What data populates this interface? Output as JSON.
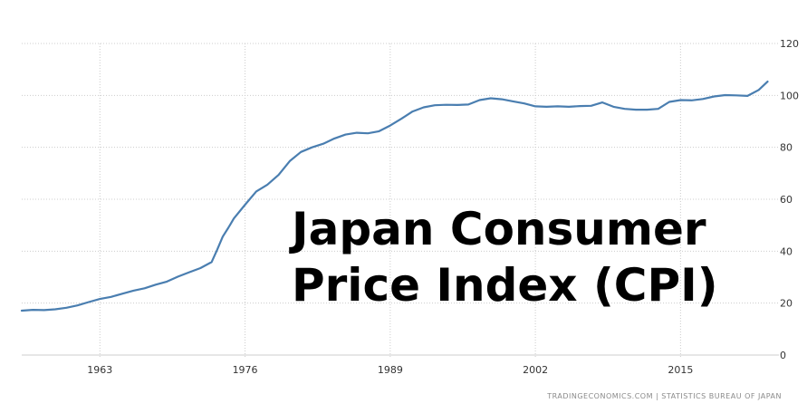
{
  "title_lines": [
    "Japan Consumer",
    "Price Index (CPI)"
  ],
  "source_text": "TRADINGECONOMICS.COM  |  STATISTICS BUREAU OF JAPAN",
  "colors": {
    "line": "#4a7eb0",
    "grid": "#cccccc",
    "axis_text": "#333333"
  },
  "chart_data": {
    "type": "line",
    "title": "Japan Consumer Price Index (CPI)",
    "xlabel": "",
    "ylabel": "",
    "xlim": [
      1956,
      2023
    ],
    "ylim": [
      0,
      120
    ],
    "x_ticks": [
      1963,
      1976,
      1989,
      2002,
      2015
    ],
    "y_ticks": [
      0,
      20,
      40,
      60,
      80,
      100,
      120
    ],
    "grid": true,
    "y_axis_side": "right",
    "series": [
      {
        "name": "",
        "x": [
          1956,
          1957,
          1958,
          1959,
          1960,
          1961,
          1962,
          1963,
          1964,
          1965,
          1966,
          1967,
          1968,
          1969,
          1970,
          1971,
          1972,
          1973,
          1973.5,
          1974,
          1974.5,
          1975,
          1976,
          1977,
          1978,
          1979,
          1980,
          1981,
          1982,
          1983,
          1984,
          1985,
          1986,
          1987,
          1988,
          1989,
          1990,
          1991,
          1992,
          1993,
          1994,
          1995,
          1996,
          1997,
          1998,
          1999,
          2000,
          2001,
          2002,
          2003,
          2004,
          2005,
          2006,
          2007,
          2008,
          2009,
          2010,
          2011,
          2012,
          2013,
          2014,
          2015,
          2016,
          2017,
          2018,
          2019,
          2020,
          2021,
          2022,
          2022.8
        ],
        "values": [
          17.1,
          17.4,
          17.3,
          17.6,
          18.2,
          19.1,
          20.4,
          21.6,
          22.4,
          23.6,
          24.8,
          25.7,
          27.1,
          28.3,
          30.2,
          31.9,
          33.5,
          35.8,
          40.5,
          45.6,
          49.0,
          52.6,
          57.9,
          63.0,
          65.6,
          69.4,
          74.7,
          78.2,
          80.0,
          81.4,
          83.4,
          84.9,
          85.6,
          85.4,
          86.2,
          88.4,
          91.0,
          93.8,
          95.4,
          96.2,
          96.4,
          96.3,
          96.5,
          98.2,
          98.9,
          98.5,
          97.7,
          96.9,
          95.8,
          95.6,
          95.8,
          95.6,
          95.9,
          96.0,
          97.3,
          95.6,
          94.8,
          94.5,
          94.5,
          94.8,
          97.5,
          98.2,
          98.1,
          98.6,
          99.6,
          100.1,
          100.0,
          99.8,
          102.1,
          105.3
        ]
      }
    ],
    "legend": "none"
  }
}
